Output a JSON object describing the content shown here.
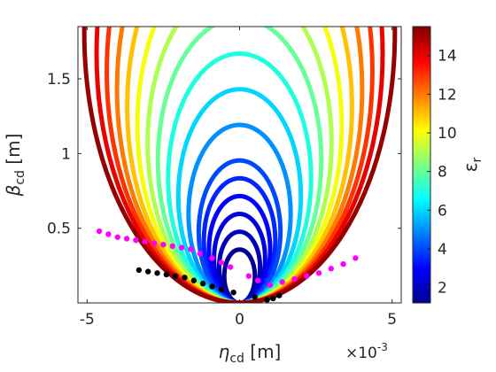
{
  "chart_data": {
    "type": "scatter",
    "title": "",
    "xlabel": "η",
    "xlabel_sub": "cd",
    "xlabel_unit": " [m]",
    "ylabel": "β",
    "ylabel_sub": "cd",
    "ylabel_unit": " [m]",
    "x_multiplier": "×10",
    "x_multiplier_exp": "-3",
    "xlim": [
      -5.3,
      5.3
    ],
    "ylim": [
      0,
      1.85
    ],
    "x_ticks": [
      -5,
      0,
      5
    ],
    "y_ticks": [
      0.5,
      1,
      1.5
    ],
    "grid": false,
    "colorbar": {
      "label": "ε",
      "label_sub": "r",
      "range": [
        1.2,
        15.5
      ],
      "ticks": [
        2,
        4,
        6,
        8,
        10,
        12,
        14
      ],
      "colormap": "jet"
    },
    "circles": {
      "description_note": "",
      "eps_values": [
        1.5,
        2,
        2.5,
        3,
        3.5,
        4,
        5,
        6,
        7,
        8,
        9,
        10,
        11,
        12,
        13,
        14,
        15.2
      ],
      "radius_x_per_eps": 0.000335,
      "radius_y_per_eps": 0.1192
    },
    "series": [
      {
        "name": "",
        "color": "#ff00ff",
        "marker": "circle",
        "points": [
          [
            -4.6,
            0.48
          ],
          [
            -4.3,
            0.46
          ],
          [
            -4.0,
            0.44
          ],
          [
            -3.7,
            0.43
          ],
          [
            -3.4,
            0.42
          ],
          [
            -3.1,
            0.41
          ],
          [
            -2.8,
            0.4
          ],
          [
            -2.5,
            0.39
          ],
          [
            -2.2,
            0.38
          ],
          [
            -1.9,
            0.37
          ],
          [
            -1.6,
            0.36
          ],
          [
            -1.3,
            0.33
          ],
          [
            -0.9,
            0.3
          ],
          [
            -0.6,
            0.27
          ],
          [
            -0.3,
            0.24
          ],
          [
            0.3,
            0.18
          ],
          [
            0.6,
            0.15
          ],
          [
            1.0,
            0.12
          ],
          [
            1.4,
            0.14
          ],
          [
            1.8,
            0.16
          ],
          [
            2.2,
            0.18
          ],
          [
            2.6,
            0.2
          ],
          [
            3.0,
            0.23
          ],
          [
            3.4,
            0.26
          ],
          [
            3.8,
            0.3
          ]
        ]
      },
      {
        "name": "",
        "color": "#000000",
        "marker": "circle",
        "points": [
          [
            -3.3,
            0.22
          ],
          [
            -3.0,
            0.21
          ],
          [
            -2.7,
            0.2
          ],
          [
            -2.4,
            0.19
          ],
          [
            -2.1,
            0.18
          ],
          [
            -1.8,
            0.17
          ],
          [
            -1.5,
            0.15
          ],
          [
            -1.2,
            0.13
          ],
          [
            -0.9,
            0.11
          ],
          [
            -0.6,
            0.09
          ],
          [
            -0.2,
            0.07
          ],
          [
            0.5,
            0.04
          ],
          [
            0.9,
            0.02
          ],
          [
            1.1,
            0.03
          ],
          [
            1.3,
            0.05
          ]
        ]
      }
    ]
  }
}
